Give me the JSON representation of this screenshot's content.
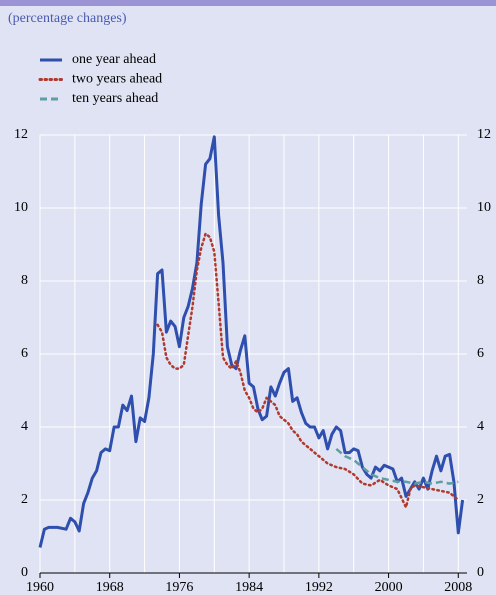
{
  "chart_data": {
    "type": "line",
    "subtitle": "(percentage changes)",
    "xlim": [
      1960,
      2009
    ],
    "xticks": [
      1960,
      1968,
      1976,
      1984,
      1992,
      2000,
      2008
    ],
    "xminor": [
      1964,
      1972,
      1980,
      1988,
      1996,
      2004
    ],
    "ylim": [
      0,
      12
    ],
    "yticks": [
      0,
      2,
      4,
      6,
      8,
      10,
      12
    ],
    "grid": true,
    "series": [
      {
        "name": "one year ahead",
        "color": "#2f4fae",
        "style": "solid",
        "x": [
          1960,
          1960.5,
          1961,
          1962,
          1963,
          1963.5,
          1964,
          1964.5,
          1965,
          1965.5,
          1966,
          1966.5,
          1967,
          1967.5,
          1968,
          1968.5,
          1969,
          1969.5,
          1970,
          1970.5,
          1971,
          1971.5,
          1972,
          1972.5,
          1973,
          1973.5,
          1974,
          1974.5,
          1975,
          1975.5,
          1976,
          1976.5,
          1977,
          1977.5,
          1978,
          1978.5,
          1979,
          1979.5,
          1980,
          1980.5,
          1981,
          1981.5,
          1982,
          1982.5,
          1983,
          1983.5,
          1984,
          1984.5,
          1985,
          1985.5,
          1986,
          1986.5,
          1987,
          1987.5,
          1988,
          1988.5,
          1989,
          1989.5,
          1990,
          1990.5,
          1991,
          1991.5,
          1992,
          1992.5,
          1993,
          1993.5,
          1994,
          1994.5,
          1995,
          1995.5,
          1996,
          1996.5,
          1997,
          1997.5,
          1998,
          1998.5,
          1999,
          1999.5,
          2000,
          2000.5,
          2001,
          2001.5,
          2002,
          2002.5,
          2003,
          2003.5,
          2004,
          2004.5,
          2005,
          2005.5,
          2006,
          2006.5,
          2007,
          2007.5,
          2008,
          2008.5
        ],
        "values": [
          0.7,
          1.2,
          1.25,
          1.25,
          1.2,
          1.5,
          1.4,
          1.15,
          1.9,
          2.2,
          2.6,
          2.8,
          3.3,
          3.4,
          3.35,
          4.0,
          4.0,
          4.6,
          4.45,
          4.85,
          3.6,
          4.25,
          4.15,
          4.8,
          6.0,
          8.2,
          8.3,
          6.6,
          6.9,
          6.75,
          6.2,
          7.0,
          7.3,
          7.8,
          8.5,
          10.1,
          11.2,
          11.35,
          11.95,
          9.8,
          8.5,
          6.2,
          5.7,
          5.6,
          6.1,
          6.5,
          5.2,
          5.1,
          4.5,
          4.2,
          4.3,
          5.1,
          4.85,
          5.2,
          5.5,
          5.6,
          4.7,
          4.8,
          4.4,
          4.1,
          4.0,
          4.0,
          3.7,
          3.9,
          3.4,
          3.8,
          4.0,
          3.9,
          3.3,
          3.3,
          3.4,
          3.35,
          2.9,
          2.7,
          2.6,
          2.9,
          2.8,
          2.95,
          2.9,
          2.85,
          2.5,
          2.6,
          2.1,
          2.3,
          2.5,
          2.3,
          2.6,
          2.3,
          2.8,
          3.2,
          2.8,
          3.2,
          3.25,
          2.5,
          1.1,
          2.0
        ]
      },
      {
        "name": "two years ahead",
        "color": "#b03a2e",
        "style": "dotted",
        "x": [
          1973.5,
          1974,
          1974.5,
          1975,
          1975.5,
          1976,
          1976.5,
          1977,
          1977.5,
          1978,
          1978.5,
          1979,
          1979.5,
          1980,
          1980.5,
          1981,
          1981.5,
          1982,
          1982.5,
          1983,
          1983.5,
          1984,
          1984.5,
          1985,
          1985.5,
          1986,
          1986.5,
          1987,
          1987.5,
          1988,
          1988.5,
          1989,
          1989.5,
          1990,
          1990.5,
          1991,
          1991.5,
          1992,
          1993,
          1994,
          1995,
          1996,
          1997,
          1998,
          1999,
          2000,
          2001,
          2002,
          2002.5,
          2003,
          2004,
          2005,
          2006,
          2007,
          2008
        ],
        "values": [
          6.8,
          6.6,
          5.9,
          5.7,
          5.6,
          5.6,
          5.7,
          6.5,
          7.3,
          8.3,
          8.9,
          9.3,
          9.2,
          8.8,
          7.4,
          5.9,
          5.7,
          5.6,
          5.8,
          5.5,
          5.0,
          4.8,
          4.5,
          4.4,
          4.5,
          4.8,
          4.7,
          4.6,
          4.3,
          4.2,
          4.1,
          3.9,
          3.8,
          3.6,
          3.5,
          3.4,
          3.3,
          3.2,
          3.0,
          2.9,
          2.85,
          2.7,
          2.45,
          2.4,
          2.55,
          2.4,
          2.3,
          1.8,
          2.3,
          2.4,
          2.35,
          2.3,
          2.25,
          2.2,
          2.0
        ]
      },
      {
        "name": "ten years ahead",
        "color": "#5f9ea3",
        "style": "dashed",
        "x": [
          1994,
          1995,
          1996,
          1997,
          1998,
          1999,
          2000,
          2001,
          2002,
          2003,
          2004,
          2005,
          2006,
          2007,
          2008
        ],
        "values": [
          3.4,
          3.2,
          3.1,
          2.9,
          2.7,
          2.6,
          2.55,
          2.5,
          2.5,
          2.45,
          2.5,
          2.45,
          2.5,
          2.45,
          2.5
        ]
      }
    ]
  }
}
